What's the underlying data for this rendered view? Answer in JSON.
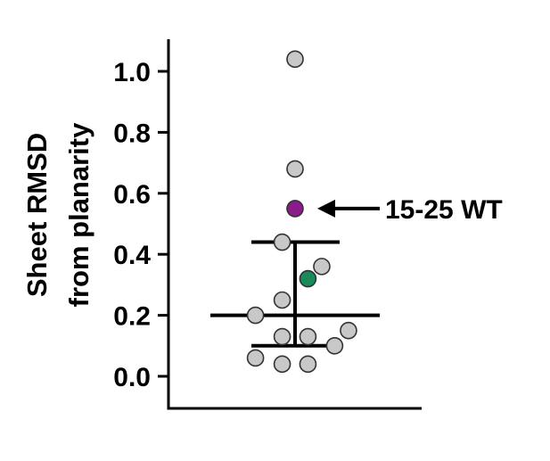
{
  "chart_data": {
    "type": "scatter",
    "title": "",
    "xlabel": "",
    "ylabel_lines": [
      "Sheet RMSD",
      "from planarity"
    ],
    "ylim": [
      -0.1,
      1.1
    ],
    "yticks": [
      0.0,
      0.2,
      0.4,
      0.6,
      0.8,
      1.0
    ],
    "ytick_labels": [
      "0.0",
      "0.2",
      "0.4",
      "0.6",
      "0.8",
      "1.0"
    ],
    "grid": false,
    "legend": "none",
    "points": [
      {
        "x": 0.0,
        "y": 1.04,
        "color": "#c8c8c8"
      },
      {
        "x": 0.0,
        "y": 0.68,
        "color": "#c8c8c8"
      },
      {
        "x": 0.0,
        "y": 0.55,
        "color": "#8b1a8b"
      },
      {
        "x": -0.13,
        "y": 0.44,
        "color": "#c8c8c8"
      },
      {
        "x": 0.27,
        "y": 0.36,
        "color": "#c8c8c8"
      },
      {
        "x": 0.13,
        "y": 0.32,
        "color": "#1a8a5a"
      },
      {
        "x": -0.13,
        "y": 0.25,
        "color": "#c8c8c8"
      },
      {
        "x": -0.4,
        "y": 0.2,
        "color": "#c8c8c8"
      },
      {
        "x": 0.54,
        "y": 0.15,
        "color": "#c8c8c8"
      },
      {
        "x": -0.13,
        "y": 0.13,
        "color": "#c8c8c8"
      },
      {
        "x": 0.13,
        "y": 0.13,
        "color": "#c8c8c8"
      },
      {
        "x": 0.4,
        "y": 0.1,
        "color": "#c8c8c8"
      },
      {
        "x": -0.4,
        "y": 0.06,
        "color": "#c8c8c8"
      },
      {
        "x": -0.13,
        "y": 0.04,
        "color": "#c8c8c8"
      },
      {
        "x": 0.13,
        "y": 0.04,
        "color": "#c8c8c8"
      }
    ],
    "summary": {
      "median": 0.2,
      "lower": 0.1,
      "upper": 0.44
    },
    "annotation": {
      "text": "15-25 WT",
      "target_y": 0.55
    }
  }
}
